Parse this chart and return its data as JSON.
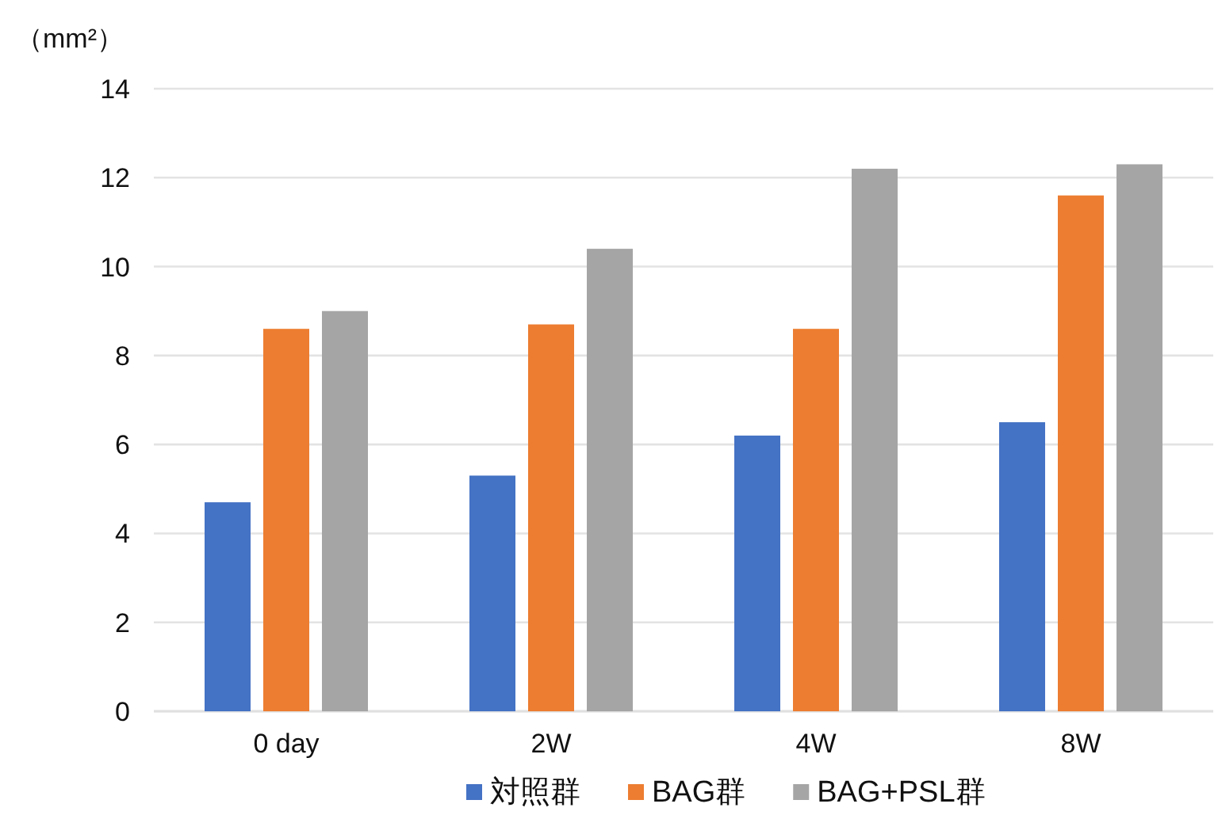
{
  "chart_data": {
    "type": "bar",
    "ylabel": "（mm²）",
    "categories": [
      "0 day",
      "2W",
      "4W",
      "8W"
    ],
    "series": [
      {
        "name": "対照群",
        "color": "#4472c4",
        "values": [
          4.7,
          5.3,
          6.2,
          6.5
        ]
      },
      {
        "name": "BAG群",
        "color": "#ed7d31",
        "values": [
          8.6,
          8.7,
          8.6,
          11.6
        ]
      },
      {
        "name": "BAG+PSL群",
        "color": "#a5a5a5",
        "values": [
          9.0,
          10.4,
          12.2,
          12.3
        ]
      }
    ],
    "ylim": [
      0,
      14
    ],
    "yticks": [
      0,
      2,
      4,
      6,
      8,
      10,
      12,
      14
    ],
    "grid": "y",
    "legend": "bottom"
  }
}
